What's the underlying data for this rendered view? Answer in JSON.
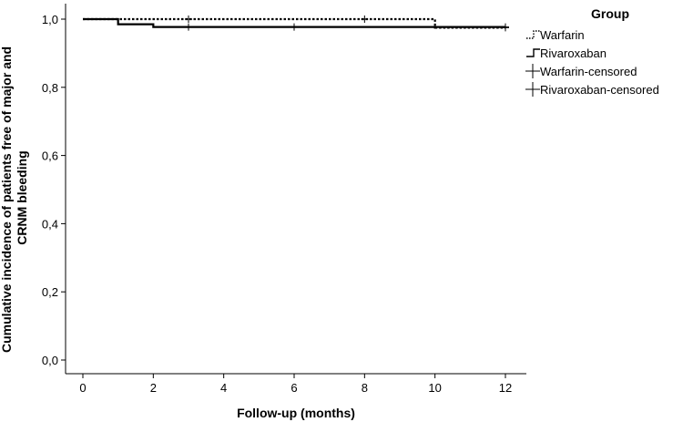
{
  "chart_data": {
    "type": "line",
    "xlabel": "Follow-up (months)",
    "ylabel": "Cumulative incidence of patients free of major and CRNM bleeding",
    "ylabel_lines": [
      "Cumulative incidence of patients free of major and",
      "CRNM bleeding"
    ],
    "xlim": [
      -0.5,
      12.5
    ],
    "ylim": [
      0.0,
      1.0
    ],
    "x_ticks": [
      0,
      2,
      4,
      6,
      8,
      10,
      12
    ],
    "x_tick_labels": [
      "0",
      "2",
      "4",
      "6",
      "8",
      "10",
      "12"
    ],
    "y_ticks": [
      0.0,
      0.2,
      0.4,
      0.6,
      0.8,
      1.0
    ],
    "y_tick_labels": [
      "0,0",
      "0,2",
      "0,4",
      "0,6",
      "0,8",
      "1,0"
    ],
    "grid": false,
    "legend": {
      "title": "Group",
      "position": "top-right",
      "entries": [
        "Warfarin",
        "Rivaroxaban",
        "Warfarin-censored",
        "Rivaroxaban-censored"
      ]
    },
    "series": [
      {
        "name": "Warfarin",
        "style": "dotted",
        "color": "#000000",
        "steps": [
          [
            0,
            1.0
          ],
          [
            10,
            0.975
          ],
          [
            12,
            0.975
          ]
        ],
        "censored": [
          [
            3,
            1.0
          ],
          [
            8,
            1.0
          ],
          [
            12,
            0.975
          ]
        ]
      },
      {
        "name": "Rivaroxaban",
        "style": "solid",
        "color": "#000000",
        "steps": [
          [
            0,
            1.0
          ],
          [
            1,
            0.985
          ],
          [
            2,
            0.977
          ],
          [
            12,
            0.977
          ]
        ],
        "censored": [
          [
            3,
            0.977
          ],
          [
            6,
            0.977
          ],
          [
            12,
            0.977
          ]
        ]
      }
    ]
  }
}
